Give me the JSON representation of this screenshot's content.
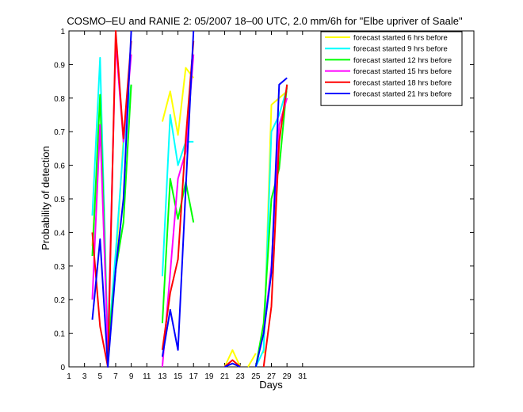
{
  "chart_data": {
    "type": "line",
    "title": "COSMO–EU and RANIE 2: 05/2007 18–00 UTC, 2.0 mm/6h for \"Elbe upriver of Saale\"",
    "xlabel": "Days",
    "ylabel": "Probability of detection",
    "xlim": [
      1,
      53
    ],
    "ylim": [
      0,
      1
    ],
    "x_ticks": [
      1,
      3,
      5,
      7,
      9,
      11,
      13,
      15,
      17,
      19,
      21,
      23,
      25,
      27,
      29,
      31
    ],
    "x_tick_labels": [
      "1",
      "3",
      "5",
      "7",
      "9",
      "11",
      "13",
      "15",
      "17",
      "19",
      "21",
      "23",
      "25",
      "27",
      "29",
      "31"
    ],
    "y_ticks": [
      0,
      0.1,
      0.2,
      0.3,
      0.4,
      0.5,
      0.6,
      0.7,
      0.8,
      0.9,
      1
    ],
    "y_tick_labels": [
      "0",
      "0.1",
      "0.2",
      "0.3",
      "0.4",
      "0.5",
      "0.6",
      "0.7",
      "0.8",
      "0.9",
      "1"
    ],
    "grid": false,
    "legend_position": "top-right",
    "series": [
      {
        "name": "forecast started 6 hrs before",
        "color": "#ffff00",
        "segments": [
          [
            [
              4,
              0.36
            ],
            [
              5,
              0.72
            ],
            [
              6,
              0.08
            ],
            [
              7,
              0.3
            ],
            [
              8,
              0.68
            ],
            [
              9,
              0.84
            ]
          ],
          [
            [
              13,
              0.73
            ],
            [
              14,
              0.82
            ],
            [
              15,
              0.69
            ],
            [
              16,
              0.89
            ],
            [
              17,
              0.86
            ]
          ],
          [
            [
              21,
              0.0
            ],
            [
              22,
              0.05
            ],
            [
              23,
              0.0
            ]
          ],
          [
            [
              24,
              0.0
            ],
            [
              25,
              0.04
            ]
          ],
          [
            [
              26,
              0.04
            ],
            [
              27,
              0.78
            ],
            [
              28,
              0.8
            ],
            [
              29,
              0.82
            ]
          ]
        ]
      },
      {
        "name": "forecast started 9 hrs before",
        "color": "#00ffff",
        "segments": [
          [
            [
              4,
              0.45
            ],
            [
              5,
              0.92
            ],
            [
              6,
              0.05
            ],
            [
              7,
              0.34
            ],
            [
              8,
              0.66
            ],
            [
              9,
              0.84
            ]
          ],
          [
            [
              13,
              0.27
            ],
            [
              14,
              0.75
            ],
            [
              15,
              0.6
            ],
            [
              16,
              0.67
            ],
            [
              17,
              0.67
            ]
          ],
          [
            [
              25,
              0.0
            ],
            [
              26,
              0.05
            ],
            [
              27,
              0.7
            ],
            [
              28,
              0.75
            ],
            [
              29,
              0.83
            ]
          ]
        ]
      },
      {
        "name": "forecast started 12 hrs before",
        "color": "#00ff00",
        "segments": [
          [
            [
              4,
              0.33
            ],
            [
              5,
              0.81
            ],
            [
              6,
              0.05
            ],
            [
              7,
              0.29
            ],
            [
              8,
              0.43
            ],
            [
              9,
              0.84
            ]
          ],
          [
            [
              13,
              0.13
            ],
            [
              14,
              0.56
            ],
            [
              15,
              0.44
            ],
            [
              16,
              0.55
            ],
            [
              17,
              0.43
            ]
          ],
          [
            [
              25,
              0.0
            ],
            [
              26,
              0.13
            ],
            [
              27,
              0.5
            ],
            [
              28,
              0.59
            ],
            [
              29,
              0.84
            ]
          ]
        ]
      },
      {
        "name": "forecast started 15 hrs before",
        "color": "#ff00ff",
        "segments": [
          [
            [
              4,
              0.2
            ],
            [
              5,
              0.72
            ],
            [
              6,
              0.05
            ],
            [
              7,
              0.97
            ],
            [
              8,
              0.67
            ],
            [
              9,
              0.93
            ]
          ],
          [
            [
              13,
              0.0
            ],
            [
              14,
              0.28
            ],
            [
              15,
              0.56
            ],
            [
              16,
              0.64
            ],
            [
              17,
              0.93
            ]
          ],
          [
            [
              26,
              0.1
            ],
            [
              27,
              0.3
            ],
            [
              28,
              0.72
            ],
            [
              29,
              0.8
            ]
          ]
        ]
      },
      {
        "name": "forecast started 18 hrs before",
        "color": "#ff0000",
        "segments": [
          [
            [
              4,
              0.4
            ],
            [
              5,
              0.12
            ],
            [
              6,
              0.0
            ],
            [
              7,
              1.0
            ],
            [
              8,
              0.68
            ],
            [
              9,
              0.97
            ]
          ],
          [
            [
              13,
              0.05
            ],
            [
              14,
              0.22
            ],
            [
              15,
              0.32
            ],
            [
              16,
              0.68
            ],
            [
              17,
              0.97
            ]
          ],
          [
            [
              21,
              0.0
            ],
            [
              22,
              0.02
            ],
            [
              23,
              0.0
            ]
          ],
          [
            [
              26,
              0.0
            ],
            [
              27,
              0.18
            ],
            [
              28,
              0.67
            ],
            [
              29,
              0.84
            ]
          ]
        ]
      },
      {
        "name": "forecast started 21 hrs before",
        "color": "#0000ff",
        "segments": [
          [
            [
              4,
              0.14
            ],
            [
              5,
              0.38
            ],
            [
              6,
              0.0
            ],
            [
              7,
              0.29
            ],
            [
              8,
              0.5
            ],
            [
              9,
              1.0
            ]
          ],
          [
            [
              13,
              0.03
            ],
            [
              14,
              0.17
            ],
            [
              15,
              0.05
            ],
            [
              16,
              0.53
            ],
            [
              17,
              1.0
            ]
          ],
          [
            [
              21,
              0.0
            ],
            [
              22,
              0.01
            ],
            [
              23,
              0.0
            ]
          ],
          [
            [
              25,
              0.0
            ],
            [
              26,
              0.1
            ],
            [
              27,
              0.28
            ],
            [
              28,
              0.84
            ],
            [
              29,
              0.86
            ]
          ]
        ]
      }
    ]
  }
}
